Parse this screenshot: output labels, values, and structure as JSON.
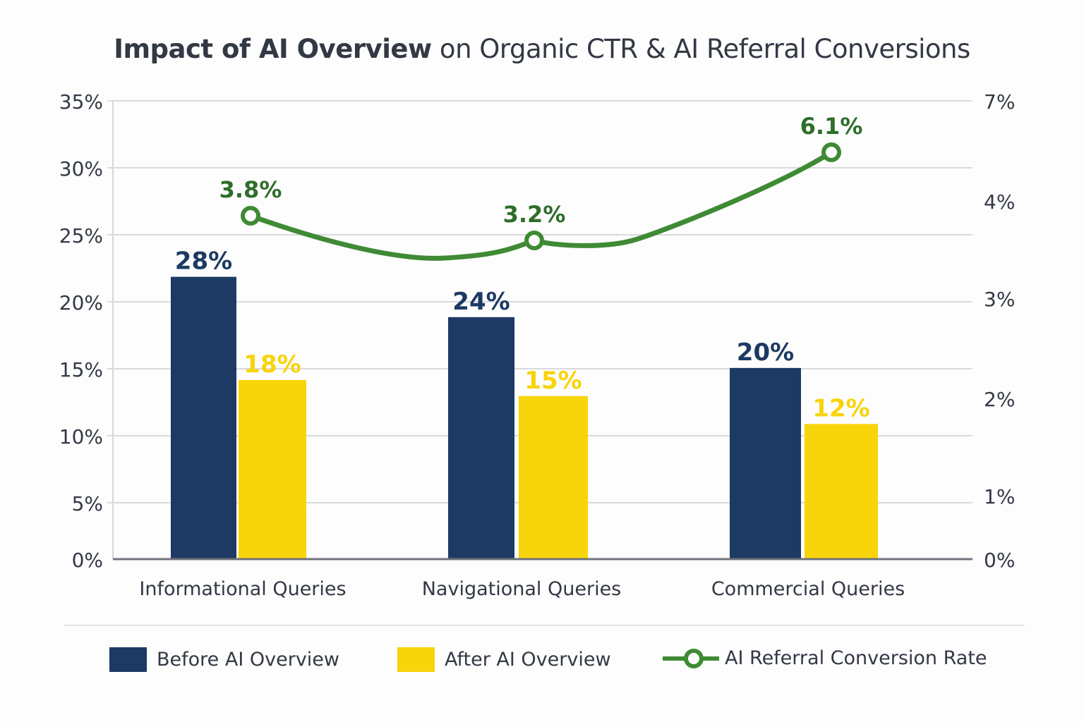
{
  "chart_data": {
    "type": "bar",
    "title_bold": "Impact of AI Overview",
    "title_rest": " on Organic CTR & AI Referral Conversions",
    "title": "Impact of AI Overview on Organic CTR & AI Referral Conversions",
    "categories": [
      "Informational Queries",
      "Navigational Queries",
      "Commercial Queries"
    ],
    "series": [
      {
        "name": "Before AI Overview",
        "type": "bar",
        "axis": "left",
        "color": "#1c3a63",
        "values": [
          28,
          24,
          20
        ],
        "labels": [
          "28%",
          "24%",
          "20%"
        ]
      },
      {
        "name": "After AI Overview",
        "type": "bar",
        "axis": "left",
        "color": "#f8d40a",
        "values": [
          18,
          15,
          12
        ],
        "labels": [
          "18%",
          "15%",
          "12%"
        ]
      },
      {
        "name": "AI Referral Conversion Rate",
        "type": "line",
        "axis": "right",
        "color": "#3f8a34",
        "label_color": "#2e6e2b",
        "values": [
          3.8,
          3.2,
          6.1
        ],
        "labels": [
          "3.8%",
          "3.2%",
          "6.1%"
        ]
      }
    ],
    "left_axis": {
      "ylim": [
        0,
        35
      ],
      "ticks": [
        0,
        5,
        10,
        15,
        20,
        25,
        30,
        35
      ],
      "tick_labels": [
        "0%",
        "5%",
        "10%",
        "15%",
        "20%",
        "25%",
        "30%",
        "35%"
      ]
    },
    "right_axis": {
      "tick_labels": [
        "0%",
        "1%",
        "2%",
        "3%",
        "4%",
        "7%"
      ]
    },
    "xlabel": "",
    "ylabel": "",
    "grid": true,
    "legend": "bottom"
  }
}
